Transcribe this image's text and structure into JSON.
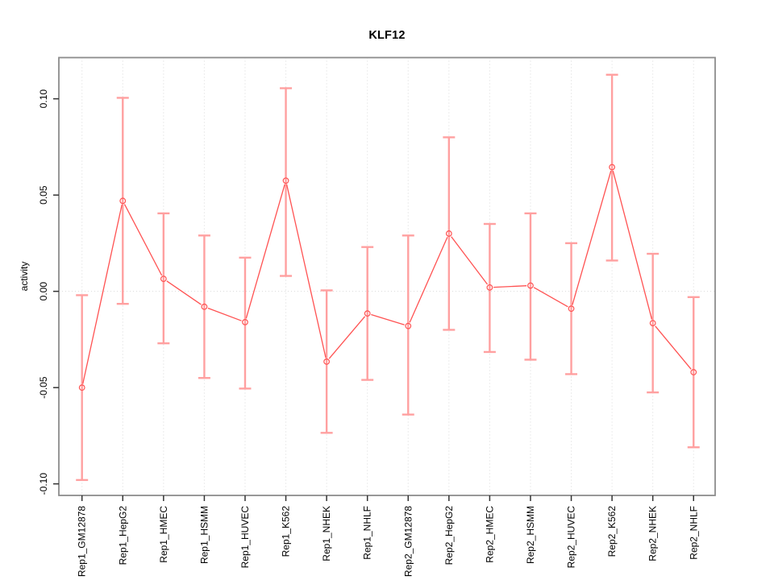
{
  "chart_data": {
    "type": "line",
    "title": "KLF12",
    "xlabel": "",
    "ylabel": "activity",
    "legend_position": "none",
    "marker": "open-circle",
    "categories": [
      "Rep1_GM12878",
      "Rep1_HepG2",
      "Rep1_HMEC",
      "Rep1_HSMM",
      "Rep1_HUVEC",
      "Rep1_K562",
      "Rep1_NHEK",
      "Rep1_NHLF",
      "Rep2_GM12878",
      "Rep2_HepG2",
      "Rep2_HMEC",
      "Rep2_HSMM",
      "Rep2_HUVEC",
      "Rep2_K562",
      "Rep2_NHEK",
      "Rep2_NHLF"
    ],
    "series": [
      {
        "name": "activity",
        "values": [
          -0.05,
          0.047,
          0.0065,
          -0.008,
          -0.016,
          0.0575,
          -0.0365,
          -0.0115,
          -0.018,
          0.03,
          0.002,
          0.003,
          -0.009,
          0.0645,
          -0.0165,
          -0.042
        ],
        "error_low": [
          -0.098,
          -0.0065,
          -0.027,
          -0.045,
          -0.0505,
          0.008,
          -0.0735,
          -0.046,
          -0.064,
          -0.02,
          -0.0315,
          -0.0355,
          -0.043,
          0.016,
          -0.0525,
          -0.081
        ],
        "error_high": [
          -0.002,
          0.1005,
          0.0405,
          0.029,
          0.0175,
          0.1055,
          0.0005,
          0.023,
          0.029,
          0.08,
          0.035,
          0.0405,
          0.025,
          0.1125,
          0.0195,
          -0.003
        ]
      }
    ],
    "ylim": [
      -0.106,
      0.1214
    ],
    "y_ticks": [
      -0.1,
      -0.05,
      0.0,
      0.05,
      0.1
    ],
    "y_tick_labels": [
      "-0.10",
      "-0.05",
      "0.00",
      "0.05",
      "0.10"
    ],
    "grid": {
      "vertical_dotted_per_category": true,
      "horizontal_dotted_at_zero": true
    },
    "colors": {
      "series": "#ff5252",
      "error_bars": "#ffa0a0",
      "grid": "#d9d9d9",
      "zero_line": "#d9d9d9",
      "box": "#8c8c8c",
      "tick": "#333333",
      "text": "#000000",
      "background": "#ffffff"
    }
  }
}
